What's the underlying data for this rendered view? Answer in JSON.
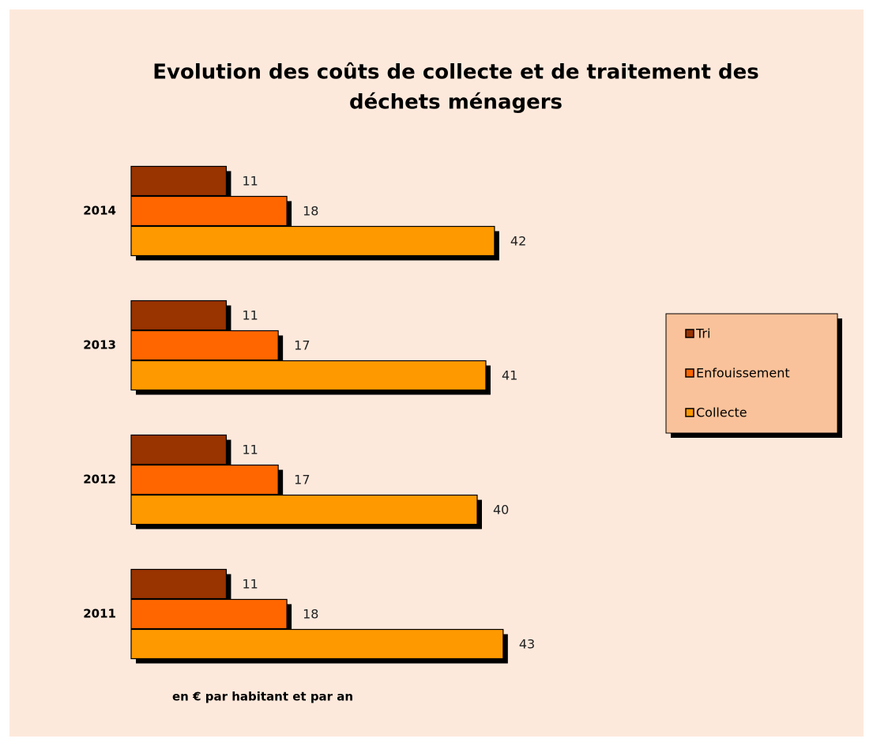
{
  "chart_data": {
    "type": "hbar",
    "title": [
      "Evolution des coûts de collecte et de traitement des",
      "déchets ménagers"
    ],
    "note": "en € par habitant et par an",
    "categories": [
      "2011",
      "2012",
      "2013",
      "2014"
    ],
    "series": [
      {
        "name": "Tri",
        "color": "#993300",
        "values": [
          11,
          11,
          11,
          11
        ]
      },
      {
        "name": "Enfouissement",
        "color": "#ff6600",
        "values": [
          18,
          17,
          17,
          18
        ]
      },
      {
        "name": "Collecte",
        "color": "#ff9900",
        "values": [
          43,
          40,
          41,
          42
        ]
      }
    ],
    "legend": "right"
  }
}
